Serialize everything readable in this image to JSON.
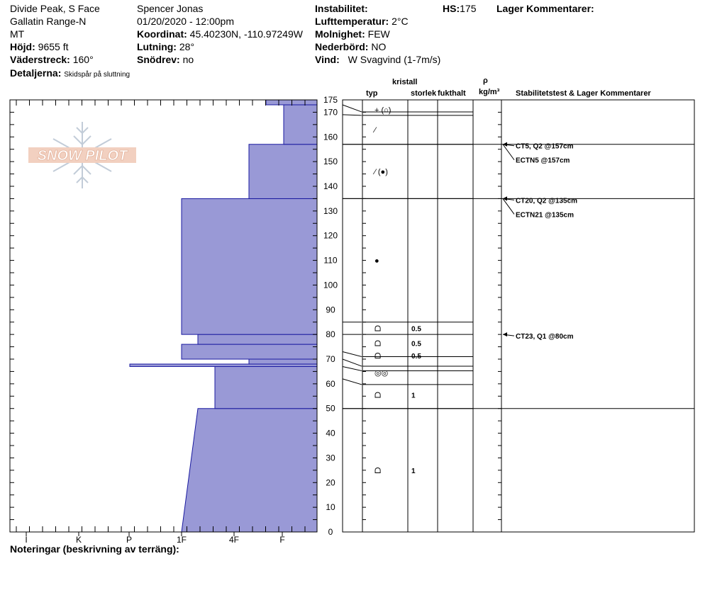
{
  "header": {
    "location": "Divide Peak, S Face",
    "range": "Gallatin Range-N",
    "state": "MT",
    "elevation_label": "Höjd:",
    "elevation": "9655 ft",
    "aspect_label": "Väderstreck:",
    "aspect": "160°",
    "details_label": "Detaljerna:",
    "details": "Skidspår på sluttning",
    "observer": "Spencer Jonas",
    "datetime": "01/20/2020 - 12:00pm",
    "coord_label": "Koordinat:",
    "coord": "45.40230N, -110.97249W",
    "slope_label": "Lutning:",
    "slope": "28°",
    "drift_label": "Snödrev:",
    "drift": "no",
    "instability_label": "Instabilitet:",
    "airtemp_label": "Lufttemperatur:",
    "airtemp": "2°C",
    "sky_label": "Molnighet:",
    "sky": "FEW",
    "precip_label": "Nederbörd:",
    "precip": "NO",
    "wind_label": "Vind:",
    "wind": "W Svagvind (1-7m/s)",
    "hs_label": "HS:",
    "hs": "175",
    "layer_comments_label": "Lager Kommentarer:"
  },
  "columns": {
    "crystal": "kristall",
    "type": "typ",
    "size": "storlek",
    "moisture": "fukthalt",
    "rho": "ρ",
    "density_unit": "kg/m³",
    "stability": "Stabilitetstest & Lager Kommentarer"
  },
  "footer": {
    "notes_label": "Noteringar (beskrivning av terräng):"
  },
  "logo": {
    "text": "SNOW PILOT"
  },
  "chart_data": {
    "type": "snow-profile",
    "y_axis": {
      "range": [
        0,
        175
      ],
      "ticks": [
        0,
        10,
        20,
        30,
        40,
        50,
        60,
        70,
        80,
        90,
        100,
        110,
        120,
        130,
        140,
        150,
        160,
        170,
        175
      ]
    },
    "hardness_axis": {
      "categories": [
        "I",
        "K",
        "P",
        "1F",
        "4F",
        "F"
      ]
    },
    "hardness_profile": [
      {
        "bottom": 0,
        "top": 50,
        "hardness_bottom": "1F",
        "hardness_top": "1F+"
      },
      {
        "bottom": 50,
        "top": 67,
        "hardness": "1F-"
      },
      {
        "bottom": 67,
        "top": 68,
        "hardness": "P-"
      },
      {
        "bottom": 68,
        "top": 70,
        "hardness": "4F+"
      },
      {
        "bottom": 70,
        "top": 76,
        "hardness": "1F"
      },
      {
        "bottom": 76,
        "top": 80,
        "hardness": "1F+"
      },
      {
        "bottom": 80,
        "top": 135,
        "hardness": "1F"
      },
      {
        "bottom": 135,
        "top": 157,
        "hardness": "4F+"
      },
      {
        "bottom": 157,
        "top": 173,
        "hardness": "F+"
      },
      {
        "bottom": 173,
        "top": 175,
        "hardness": "F-"
      }
    ],
    "layer_boundaries": [
      0,
      50,
      62,
      67,
      70,
      73,
      80,
      85,
      135,
      157,
      169,
      173
    ],
    "layers": [
      {
        "center": 171,
        "symbol": "+ (○)",
        "size": ""
      },
      {
        "center": 163,
        "symbol": "⁄",
        "size": ""
      },
      {
        "center": 146,
        "symbol": "⁄ (●)",
        "size": ""
      },
      {
        "center": 110,
        "symbol": "●",
        "size": ""
      },
      {
        "center": 82.5,
        "symbol": "ᗝ",
        "size": "0.5"
      },
      {
        "center": 76.5,
        "symbol": "ᗝ",
        "size": "0.5"
      },
      {
        "center": 71.5,
        "symbol": "ᗝ",
        "size": "0.5"
      },
      {
        "center": 64.5,
        "symbol": "◎◎",
        "size": ""
      },
      {
        "center": 55.5,
        "symbol": "ᗝ",
        "size": "1"
      },
      {
        "center": 25,
        "symbol": "ᗝ",
        "size": "1"
      }
    ],
    "stability_tests": [
      {
        "height": 157,
        "label": "CT5, Q2 @157cm"
      },
      {
        "height": 157,
        "label": "ECTN5 @157cm"
      },
      {
        "height": 135,
        "label": "CT20, Q2 @135cm"
      },
      {
        "height": 135,
        "label": "ECTN21 @135cm"
      },
      {
        "height": 80,
        "label": "CT23, Q1 @80cm"
      }
    ]
  }
}
